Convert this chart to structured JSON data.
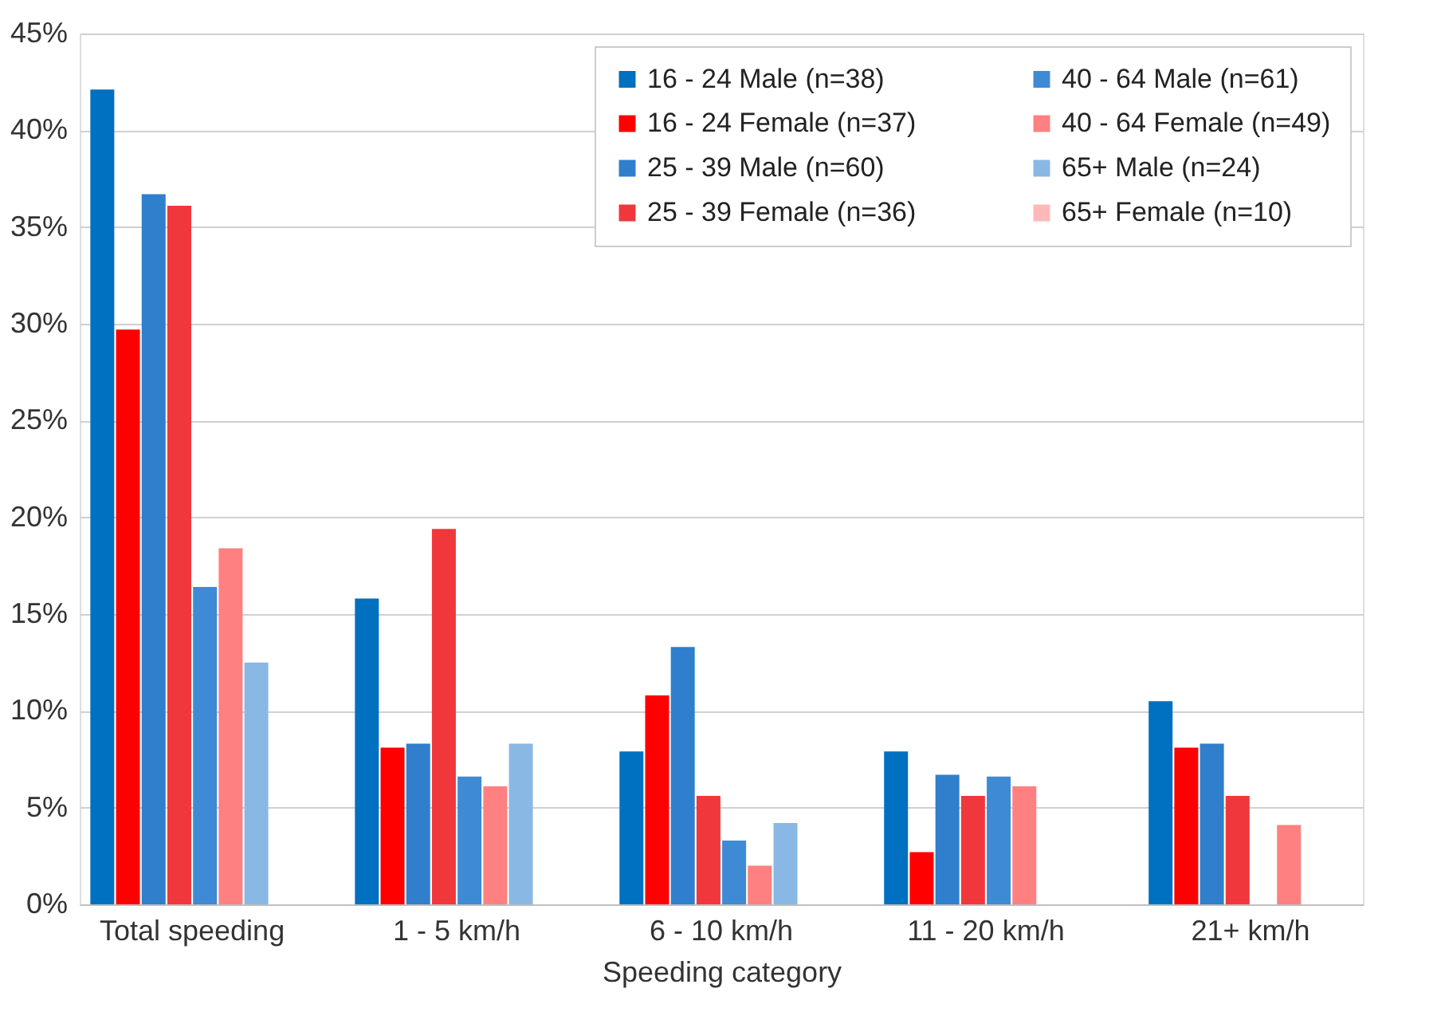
{
  "chart_data": {
    "type": "bar",
    "xlabel": "Speeding category",
    "categories": [
      "Total speeding",
      "1 - 5 km/h",
      "6 - 10 km/h",
      "11 - 20 km/h",
      "21+ km/h"
    ],
    "series": [
      {
        "name": "16 - 24 Male (n=38)",
        "color": "#0070c0",
        "values": [
          42.1,
          15.8,
          7.9,
          7.9,
          10.5
        ]
      },
      {
        "name": "16 - 24 Female (n=37)",
        "color": "#ff0000",
        "values": [
          29.7,
          8.1,
          10.8,
          2.7,
          8.1
        ]
      },
      {
        "name": "25 - 39 Male (n=60)",
        "color": "#2f7fcc",
        "values": [
          36.7,
          8.3,
          13.3,
          6.7,
          8.3
        ]
      },
      {
        "name": "25 - 39 Female (n=36)",
        "color": "#f0383c",
        "values": [
          36.1,
          19.4,
          5.6,
          5.6,
          5.6
        ]
      },
      {
        "name": "40 - 64 Male (n=61)",
        "color": "#3f8ad4",
        "values": [
          16.4,
          6.6,
          3.3,
          6.6,
          0
        ]
      },
      {
        "name": "40 - 64 Female (n=49)",
        "color": "#ff8080",
        "values": [
          18.4,
          6.1,
          2.0,
          6.1,
          4.1
        ]
      },
      {
        "name": "65+ Male (n=24)",
        "color": "#8ab8e4",
        "values": [
          12.5,
          8.3,
          4.2,
          0,
          0
        ]
      },
      {
        "name": "65+ Female (n=10)",
        "color": "#ffb8b8",
        "values": [
          0,
          0,
          0,
          0,
          0
        ]
      }
    ],
    "ylim": [
      0,
      45
    ],
    "yticks": [
      {
        "value": 0,
        "label": "0%"
      },
      {
        "value": 5,
        "label": "5%"
      },
      {
        "value": 10,
        "label": "10%"
      },
      {
        "value": 15,
        "label": "15%"
      },
      {
        "value": 20,
        "label": "20%"
      },
      {
        "value": 25,
        "label": "25%"
      },
      {
        "value": 30,
        "label": "30%"
      },
      {
        "value": 35,
        "label": "35%"
      },
      {
        "value": 40,
        "label": "40%"
      },
      {
        "value": 45,
        "label": "45%"
      }
    ],
    "grid": "y",
    "legend": "top right"
  }
}
